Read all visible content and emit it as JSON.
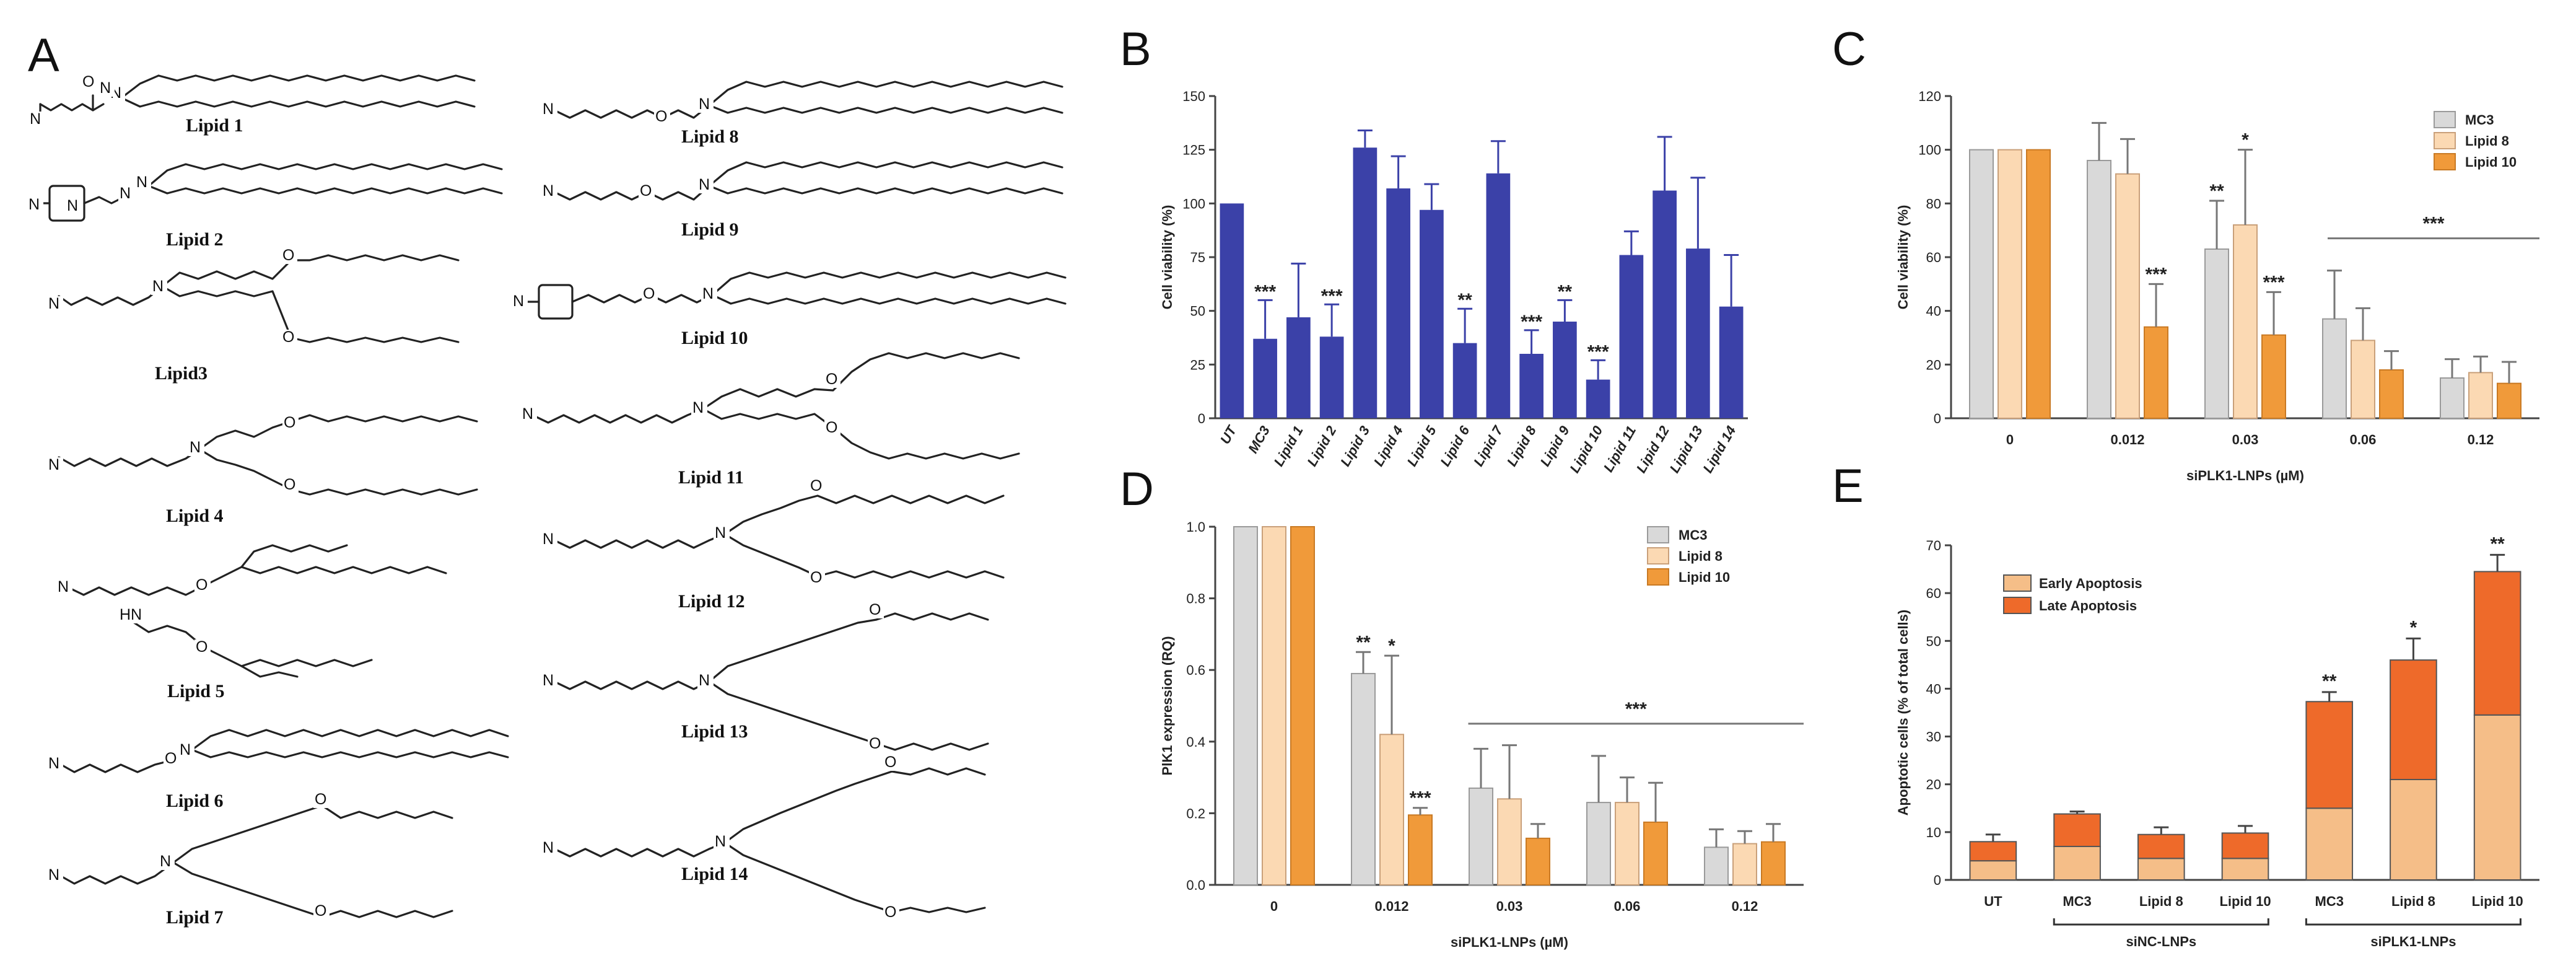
{
  "panel_labels": {
    "a": "A",
    "b": "B",
    "c": "C",
    "d": "D",
    "e": "E"
  },
  "atoms": {
    "n": "N",
    "nh": "HN",
    "h": "H",
    "o": "O"
  },
  "lipids": [
    "Lipid 1",
    "Lipid 2",
    "Lipid3",
    "Lipid 4",
    "Lipid 5",
    "Lipid 6",
    "Lipid 7",
    "Lipid 8",
    "Lipid 9",
    "Lipid 10",
    "Lipid 11",
    "Lipid 12",
    "Lipid 13",
    "Lipid 14"
  ],
  "colors": {
    "blue": "#3b41a8",
    "grey": "#d9d9d9",
    "light_orange": "#fbd9b3",
    "orange": "#f09a3a",
    "early": "#f5be88",
    "late": "#ee6a2a",
    "axis": "#444444"
  },
  "chart_data": [
    {
      "id": "B",
      "type": "bar",
      "title": "",
      "ylabel": "Cell viability (%)",
      "xlabel": "",
      "ylim": [
        0,
        150
      ],
      "yticks": [
        0,
        25,
        50,
        75,
        100,
        125,
        150
      ],
      "categories": [
        "UT",
        "MC3",
        "Lipid 1",
        "Lipid 2",
        "Lipid 3",
        "Lipid 4",
        "Lipid 5",
        "Lipid 6",
        "Lipid 7",
        "Lipid 8",
        "Lipid 9",
        "Lipid 10",
        "Lipid 11",
        "Lipid 12",
        "Lipid 13",
        "Lipid 14"
      ],
      "values": [
        100,
        37,
        47,
        38,
        126,
        107,
        97,
        35,
        114,
        30,
        45,
        18,
        76,
        106,
        79,
        52
      ],
      "errors": [
        0,
        18,
        25,
        15,
        8,
        15,
        12,
        16,
        15,
        11,
        10,
        9,
        11,
        25,
        33,
        24
      ],
      "significance": [
        "",
        "***",
        "",
        "***",
        "",
        "",
        "",
        "**",
        "",
        "***",
        "**",
        "***",
        "",
        "",
        "",
        ""
      ]
    },
    {
      "id": "C",
      "type": "bar",
      "ylabel": "Cell viability (%)",
      "xlabel": "siPLK1-LNPs (µM)",
      "ylim": [
        0,
        120
      ],
      "yticks": [
        0,
        20,
        40,
        60,
        80,
        100,
        120
      ],
      "categories": [
        "0",
        "0.012",
        "0.03",
        "0.06",
        "0.12"
      ],
      "series": [
        {
          "name": "MC3",
          "values": [
            100,
            96,
            63,
            37,
            15
          ],
          "errors": [
            0,
            14,
            18,
            18,
            7
          ],
          "stars": [
            "",
            "",
            "**",
            "",
            ""
          ]
        },
        {
          "name": "Lipid 8",
          "values": [
            100,
            91,
            72,
            29,
            17
          ],
          "errors": [
            0,
            13,
            28,
            12,
            6
          ],
          "stars": [
            "",
            "",
            "*",
            "",
            ""
          ]
        },
        {
          "name": "Lipid 10",
          "values": [
            100,
            34,
            31,
            18,
            13
          ],
          "errors": [
            0,
            16,
            16,
            7,
            8
          ],
          "stars": [
            "",
            "***",
            "***",
            "",
            ""
          ]
        }
      ],
      "group_significance": "***"
    },
    {
      "id": "D",
      "type": "bar",
      "ylabel": "PlK1 expression (RQ)",
      "xlabel": "siPLK1-LNPs (µM)",
      "ylim": [
        0,
        1.0
      ],
      "yticks": [
        "0.0",
        "0.2",
        "0.4",
        "0.6",
        "0.8",
        "1.0"
      ],
      "categories": [
        "0",
        "0.012",
        "0.03",
        "0.06",
        "0.12"
      ],
      "series": [
        {
          "name": "MC3",
          "values": [
            1.0,
            0.59,
            0.27,
            0.23,
            0.105
          ],
          "errors": [
            0,
            0.06,
            0.11,
            0.13,
            0.05
          ],
          "stars": [
            "",
            "**",
            "",
            "",
            ""
          ]
        },
        {
          "name": "Lipid 8",
          "values": [
            1.0,
            0.42,
            0.24,
            0.23,
            0.115
          ],
          "errors": [
            0,
            0.22,
            0.15,
            0.07,
            0.035
          ],
          "stars": [
            "",
            "*",
            "",
            "",
            ""
          ]
        },
        {
          "name": "Lipid 10",
          "values": [
            1.0,
            0.195,
            0.13,
            0.175,
            0.12
          ],
          "errors": [
            0,
            0.02,
            0.04,
            0.11,
            0.05
          ],
          "stars": [
            "",
            "***",
            "",
            "",
            ""
          ]
        }
      ],
      "group_significance": "***"
    },
    {
      "id": "E",
      "type": "bar",
      "stacked": true,
      "ylabel": "Apoptotic cells (% of total cells)",
      "xlabel": "",
      "ylim": [
        0,
        70
      ],
      "yticks": [
        0,
        10,
        20,
        30,
        40,
        50,
        60,
        70
      ],
      "categories": [
        "UT",
        "MC3",
        "Lipid 8",
        "Lipid 10",
        "MC3",
        "Lipid 8",
        "Lipid 10"
      ],
      "series": [
        {
          "name": "Early Apoptosis",
          "values": [
            4,
            7,
            4.5,
            4.5,
            15,
            21,
            34.5
          ],
          "errors": [
            0.5,
            2,
            0.7,
            0.7,
            1.2,
            5,
            2
          ]
        },
        {
          "name": "Late Apoptosis",
          "values": [
            4,
            6.8,
            5,
            5.3,
            22.3,
            25,
            30
          ],
          "errors": [
            1.5,
            0.5,
            1.5,
            1.5,
            2,
            4.5,
            3.5
          ]
        }
      ],
      "significance": [
        "",
        "",
        "",
        "",
        "**",
        "*",
        "**"
      ],
      "groups": [
        {
          "label": "siNC-LNPs",
          "from": 1,
          "to": 3
        },
        {
          "label": "siPLK1-LNPs",
          "from": 4,
          "to": 6
        }
      ]
    }
  ]
}
